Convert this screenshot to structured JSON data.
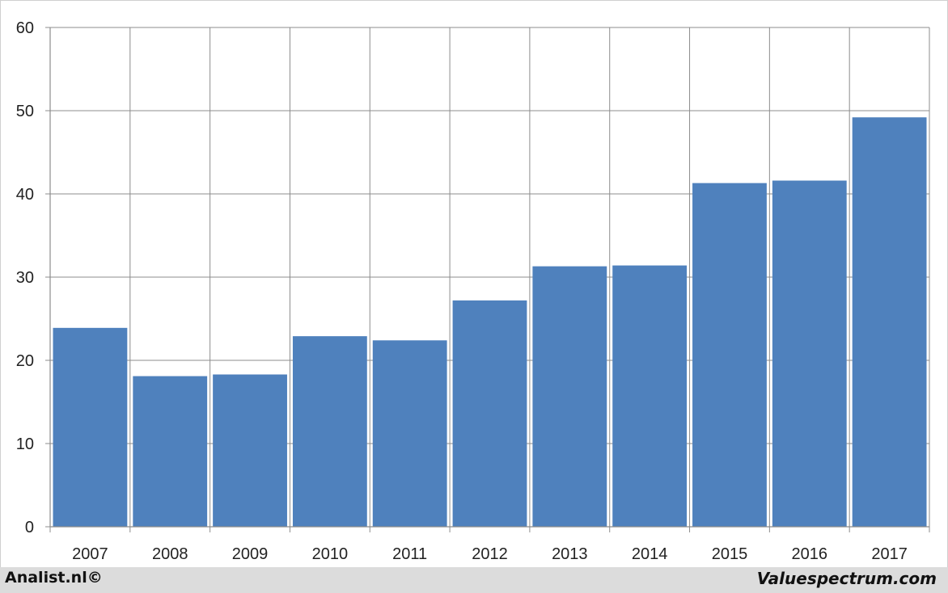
{
  "chart_data": {
    "type": "bar",
    "title": "",
    "xlabel": "",
    "ylabel": "",
    "categories": [
      "2007",
      "2008",
      "2009",
      "2010",
      "2011",
      "2012",
      "2013",
      "2014",
      "2015",
      "2016",
      "2017"
    ],
    "values": [
      23.9,
      18.1,
      18.3,
      22.9,
      22.4,
      27.2,
      31.3,
      31.4,
      41.3,
      41.6,
      49.2
    ],
    "ylim": [
      0,
      60
    ],
    "yticks": [
      "0",
      "10",
      "20",
      "30",
      "40",
      "50",
      "60"
    ],
    "grid": true,
    "legend": "none",
    "colors": {
      "bar": "#4f81bd",
      "grid": "#8c8c8c",
      "axis": "#8c8c8c"
    }
  },
  "footer": {
    "left_credit": "Analist.nl©",
    "right_credit": "Valuespectrum.com"
  }
}
